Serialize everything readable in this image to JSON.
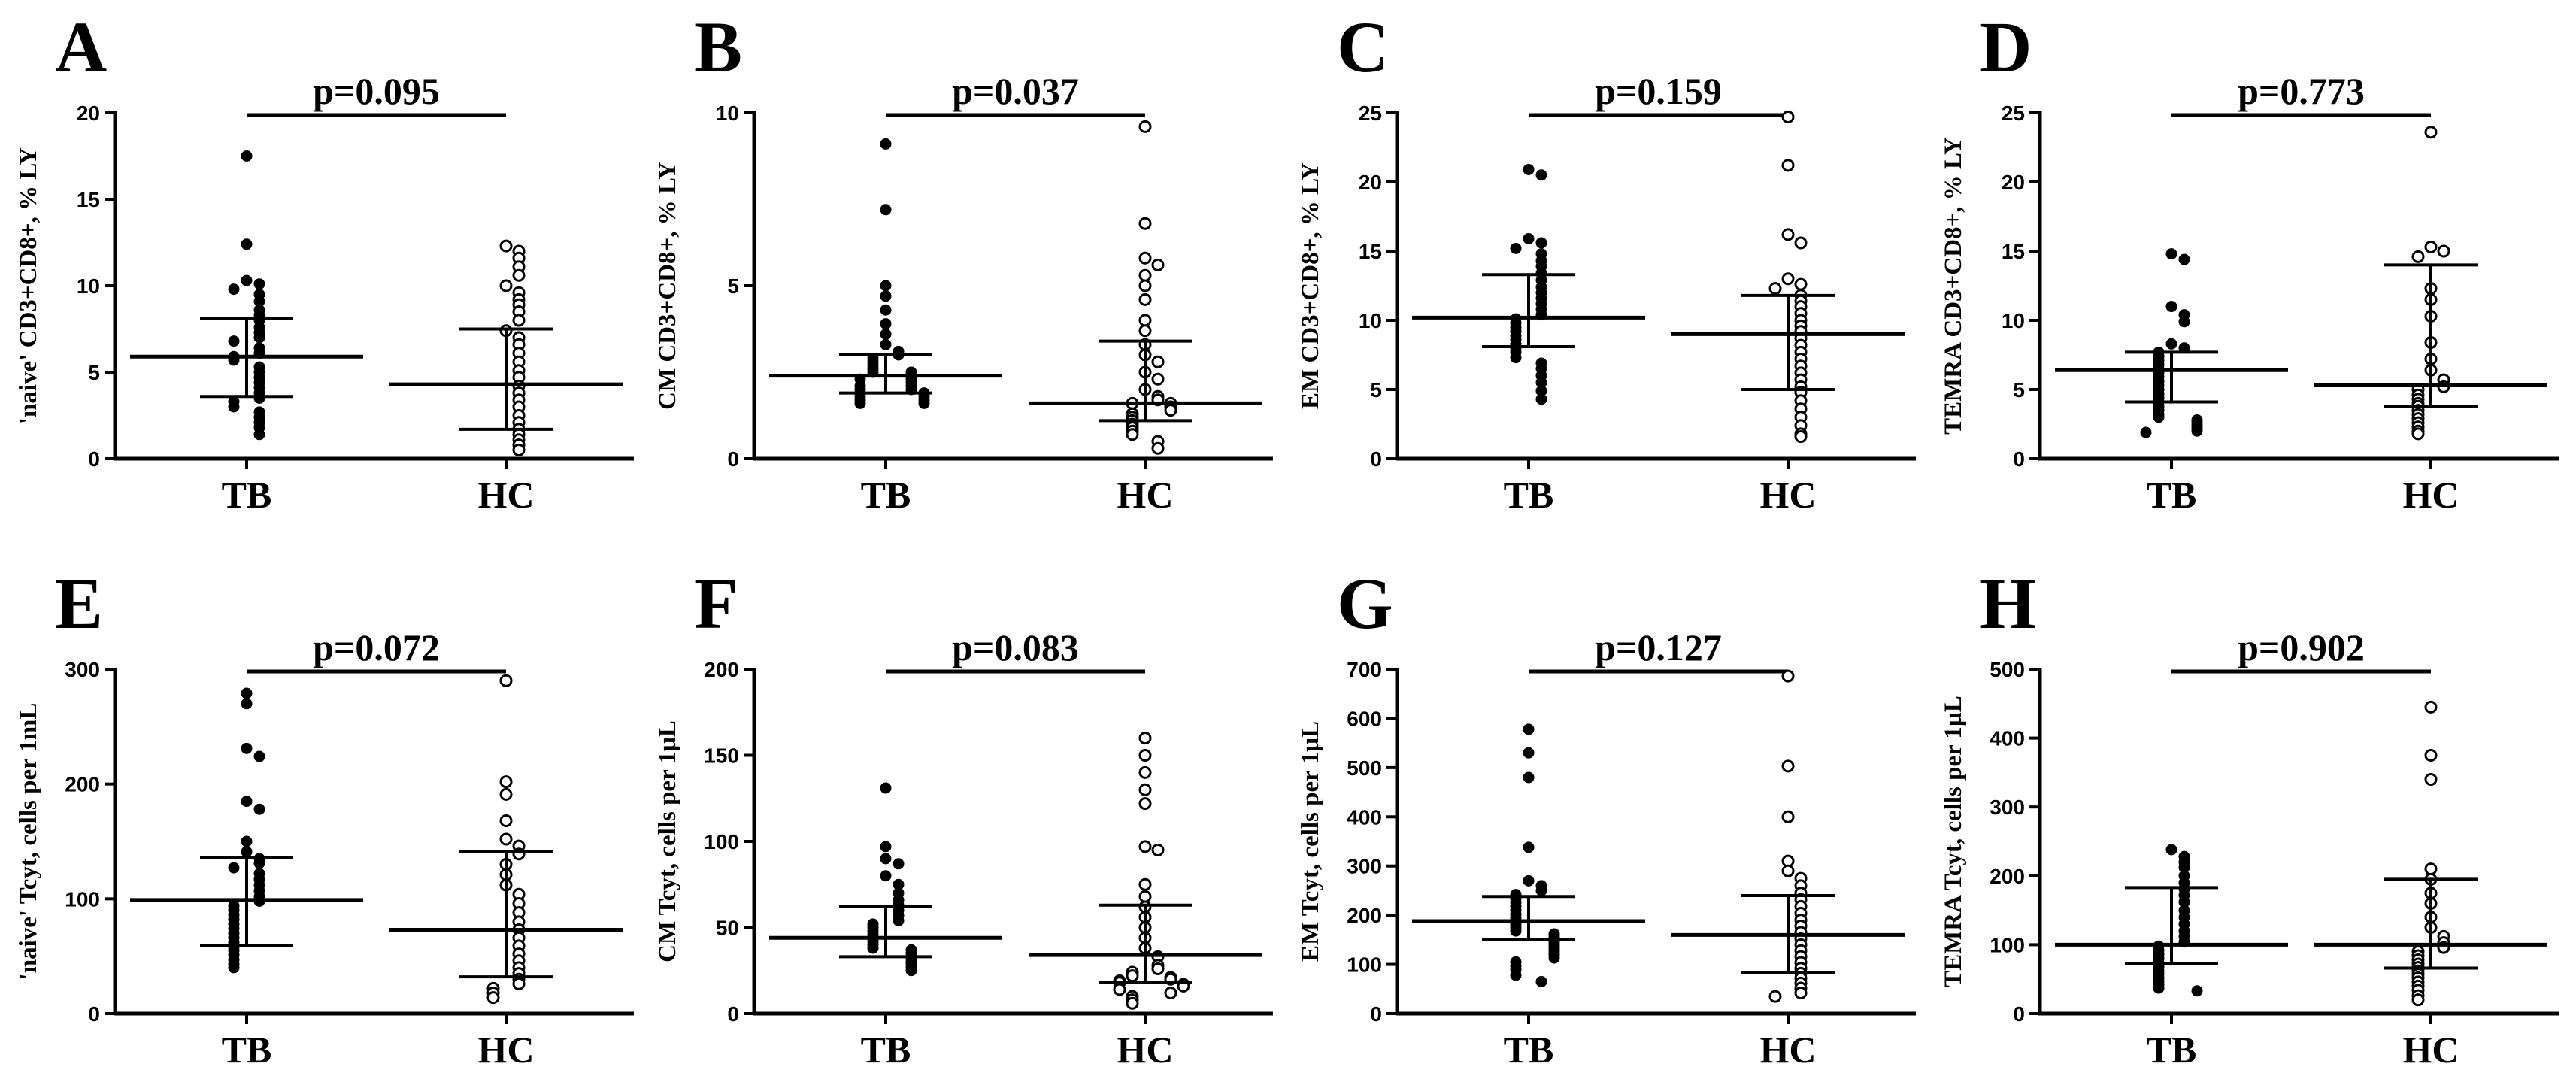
{
  "chart_data": [
    {
      "panel": "A",
      "type": "scatter",
      "title": "",
      "ylabel": "'naive' CD3+CD8+, % LY",
      "xlabel": "",
      "pvalue": "p=0.095",
      "categories": [
        "TB",
        "HC"
      ],
      "ylim": [
        0,
        20
      ],
      "yticks": [
        0,
        5,
        10,
        15,
        20
      ],
      "series": [
        {
          "name": "TB",
          "marker": "filled",
          "median": 5.9,
          "iqr": [
            3.6,
            8.1
          ],
          "values": [
            17.5,
            12.4,
            10.3,
            10.1,
            9.8,
            9.5,
            9.1,
            8.6,
            8.3,
            8.0,
            7.6,
            7.3,
            7.0,
            6.8,
            6.4,
            6.1,
            5.9,
            5.7,
            5.3,
            5.0,
            4.7,
            4.4,
            4.1,
            3.8,
            3.5,
            3.3,
            3.0,
            2.7,
            2.4,
            2.1,
            1.8,
            1.4
          ]
        },
        {
          "name": "HC",
          "marker": "open",
          "median": 4.3,
          "iqr": [
            1.7,
            7.5
          ],
          "values": [
            12.3,
            12.0,
            11.6,
            11.1,
            10.6,
            10.0,
            9.6,
            9.2,
            8.9,
            8.5,
            8.0,
            7.4,
            7.0,
            6.6,
            6.1,
            5.6,
            5.1,
            4.7,
            4.2,
            3.8,
            3.4,
            3.0,
            2.5,
            2.1,
            1.7,
            1.4,
            1.1,
            0.8,
            0.5
          ]
        }
      ]
    },
    {
      "panel": "B",
      "type": "scatter",
      "title": "",
      "ylabel": "CM CD3+CD8+, % LY",
      "xlabel": "",
      "pvalue": "p=0.037",
      "categories": [
        "TB",
        "HC"
      ],
      "ylim": [
        0,
        10
      ],
      "yticks": [
        0,
        5,
        10
      ],
      "series": [
        {
          "name": "TB",
          "marker": "filled",
          "median": 2.4,
          "iqr": [
            1.9,
            3.0
          ],
          "values": [
            9.1,
            7.2,
            5.0,
            4.7,
            4.3,
            3.9,
            3.6,
            3.3,
            3.1,
            3.0,
            2.9,
            2.8,
            2.7,
            2.6,
            2.5,
            2.5,
            2.4,
            2.3,
            2.3,
            2.2,
            2.1,
            2.1,
            2.0,
            2.0,
            1.9,
            1.9,
            1.8,
            1.8,
            1.7,
            1.7,
            1.6,
            1.6
          ]
        },
        {
          "name": "HC",
          "marker": "open",
          "median": 1.6,
          "iqr": [
            1.1,
            3.4
          ],
          "values": [
            9.6,
            6.8,
            5.8,
            5.6,
            5.3,
            5.0,
            4.6,
            4.0,
            3.7,
            3.3,
            3.0,
            2.8,
            2.5,
            2.3,
            2.0,
            1.8,
            1.7,
            1.6,
            1.6,
            1.5,
            1.4,
            1.3,
            1.2,
            1.1,
            1.0,
            0.9,
            0.8,
            0.7,
            0.5,
            0.3
          ]
        }
      ]
    },
    {
      "panel": "C",
      "type": "scatter",
      "title": "",
      "ylabel": "EM CD3+CD8+, % LY",
      "xlabel": "",
      "pvalue": "p=0.159",
      "categories": [
        "TB",
        "HC"
      ],
      "ylim": [
        0,
        25
      ],
      "yticks": [
        0,
        5,
        10,
        15,
        20,
        25
      ],
      "series": [
        {
          "name": "TB",
          "marker": "filled",
          "median": 10.2,
          "iqr": [
            8.1,
            13.3
          ],
          "values": [
            20.9,
            20.5,
            15.9,
            15.6,
            15.2,
            14.8,
            14.3,
            13.9,
            13.4,
            12.9,
            12.4,
            12.0,
            11.6,
            11.2,
            10.8,
            10.4,
            10.1,
            9.8,
            9.5,
            9.2,
            8.9,
            8.6,
            8.3,
            8.0,
            7.7,
            7.3,
            6.9,
            6.5,
            6.0,
            5.5,
            4.9,
            4.3
          ]
        },
        {
          "name": "HC",
          "marker": "open",
          "median": 9.0,
          "iqr": [
            5.0,
            11.8
          ],
          "values": [
            24.7,
            21.2,
            16.2,
            15.6,
            13.0,
            12.6,
            12.3,
            11.8,
            11.4,
            11.0,
            10.5,
            10.0,
            9.6,
            9.2,
            8.7,
            8.2,
            7.7,
            7.2,
            6.7,
            6.2,
            5.7,
            5.2,
            4.8,
            4.2,
            3.6,
            3.0,
            2.4,
            1.8,
            1.6
          ]
        }
      ]
    },
    {
      "panel": "D",
      "type": "scatter",
      "title": "",
      "ylabel": "TEMRA CD3+CD8+, % LY",
      "xlabel": "",
      "pvalue": "p=0.773",
      "categories": [
        "TB",
        "HC"
      ],
      "ylim": [
        0,
        25
      ],
      "yticks": [
        0,
        5,
        10,
        15,
        20,
        25
      ],
      "series": [
        {
          "name": "TB",
          "marker": "filled",
          "median": 6.4,
          "iqr": [
            4.1,
            7.7
          ],
          "values": [
            14.8,
            14.4,
            11.0,
            10.4,
            9.9,
            8.3,
            8.0,
            7.7,
            7.4,
            7.1,
            6.8,
            6.5,
            6.2,
            5.9,
            5.6,
            5.3,
            5.0,
            4.7,
            4.4,
            4.1,
            3.8,
            3.5,
            3.2,
            3.0,
            2.8,
            2.6,
            2.4,
            2.2,
            2.0,
            1.9
          ]
        },
        {
          "name": "HC",
          "marker": "open",
          "median": 5.3,
          "iqr": [
            3.8,
            14.0
          ],
          "values": [
            23.6,
            15.3,
            15.0,
            14.6,
            12.3,
            11.5,
            10.3,
            8.4,
            7.2,
            6.4,
            5.7,
            5.2,
            5.0,
            4.6,
            4.3,
            4.0,
            3.8,
            3.5,
            3.2,
            2.9,
            2.6,
            2.3,
            2.0,
            1.8
          ]
        }
      ]
    },
    {
      "panel": "E",
      "type": "scatter",
      "title": "",
      "ylabel": "'naive' Tcyt, cells per 1mL",
      "xlabel": "",
      "pvalue": "p=0.072",
      "categories": [
        "TB",
        "HC"
      ],
      "ylim": [
        0,
        300
      ],
      "yticks": [
        0,
        100,
        200,
        300
      ],
      "series": [
        {
          "name": "TB",
          "marker": "filled",
          "median": 99,
          "iqr": [
            59,
            136
          ],
          "values": [
            279,
            270,
            231,
            224,
            185,
            178,
            150,
            141,
            135,
            131,
            127,
            122,
            117,
            112,
            107,
            102,
            98,
            94,
            90,
            86,
            82,
            78,
            74,
            70,
            66,
            62,
            58,
            55,
            51,
            47,
            43,
            40
          ]
        },
        {
          "name": "HC",
          "marker": "open",
          "median": 73,
          "iqr": [
            32,
            141
          ],
          "values": [
            290,
            202,
            191,
            168,
            152,
            146,
            139,
            130,
            121,
            112,
            104,
            96,
            88,
            80,
            73,
            66,
            59,
            52,
            46,
            40,
            35,
            30,
            26,
            22,
            18,
            14
          ]
        }
      ]
    },
    {
      "panel": "F",
      "type": "scatter",
      "title": "",
      "ylabel": "CM Tcyt, cells per 1µL",
      "xlabel": "",
      "pvalue": "p=0.083",
      "categories": [
        "TB",
        "HC"
      ],
      "ylim": [
        0,
        200
      ],
      "yticks": [
        0,
        50,
        100,
        150,
        200
      ],
      "series": [
        {
          "name": "TB",
          "marker": "filled",
          "median": 44,
          "iqr": [
            33,
            62
          ],
          "values": [
            131,
            97,
            90,
            87,
            80,
            75,
            70,
            66,
            63,
            60,
            57,
            54,
            52,
            50,
            48,
            46,
            44,
            42,
            40,
            38,
            37,
            35,
            33,
            32,
            30,
            29,
            27,
            25
          ]
        },
        {
          "name": "HC",
          "marker": "open",
          "median": 34,
          "iqr": [
            18,
            63
          ],
          "values": [
            160,
            150,
            140,
            130,
            122,
            97,
            95,
            75,
            68,
            62,
            56,
            50,
            44,
            38,
            33,
            28,
            26,
            24,
            22,
            21,
            20,
            19,
            18,
            17,
            16,
            14,
            12,
            10,
            8,
            6
          ]
        }
      ]
    },
    {
      "panel": "G",
      "type": "scatter",
      "title": "",
      "ylabel": "EM Tcyt, cells per 1µL",
      "xlabel": "",
      "pvalue": "p=0.127",
      "categories": [
        "TB",
        "HC"
      ],
      "ylim": [
        0,
        700
      ],
      "yticks": [
        0,
        100,
        200,
        300,
        400,
        500,
        600,
        700
      ],
      "series": [
        {
          "name": "TB",
          "marker": "filled",
          "median": 188,
          "iqr": [
            150,
            238
          ],
          "values": [
            578,
            530,
            480,
            338,
            270,
            260,
            250,
            242,
            234,
            226,
            218,
            210,
            202,
            195,
            188,
            181,
            175,
            168,
            162,
            156,
            150,
            144,
            138,
            132,
            126,
            120,
            113,
            105,
            97,
            89,
            78,
            65
          ]
        },
        {
          "name": "HC",
          "marker": "open",
          "median": 160,
          "iqr": [
            83,
            240
          ],
          "values": [
            686,
            503,
            400,
            310,
            290,
            275,
            260,
            245,
            232,
            218,
            204,
            190,
            178,
            165,
            152,
            140,
            128,
            116,
            104,
            92,
            82,
            72,
            62,
            52,
            42,
            35
          ]
        }
      ]
    },
    {
      "panel": "H",
      "type": "scatter",
      "title": "",
      "ylabel": "TEMRA Tcyt, cells per 1µL",
      "xlabel": "",
      "pvalue": "p=0.902",
      "categories": [
        "TB",
        "HC"
      ],
      "ylim": [
        0,
        500
      ],
      "yticks": [
        0,
        100,
        200,
        300,
        400,
        500
      ],
      "series": [
        {
          "name": "TB",
          "marker": "filled",
          "median": 100,
          "iqr": [
            72,
            183
          ],
          "values": [
            238,
            228,
            220,
            212,
            200,
            190,
            181,
            172,
            162,
            150,
            140,
            130,
            120,
            112,
            104,
            98,
            92,
            86,
            80,
            74,
            68,
            62,
            57,
            52,
            47,
            42,
            37,
            33
          ]
        },
        {
          "name": "HC",
          "marker": "open",
          "median": 100,
          "iqr": [
            66,
            195
          ],
          "values": [
            445,
            375,
            340,
            210,
            195,
            175,
            160,
            140,
            125,
            112,
            103,
            96,
            90,
            84,
            78,
            72,
            67,
            62,
            57,
            52,
            46,
            40,
            34,
            26,
            20
          ]
        }
      ]
    }
  ]
}
